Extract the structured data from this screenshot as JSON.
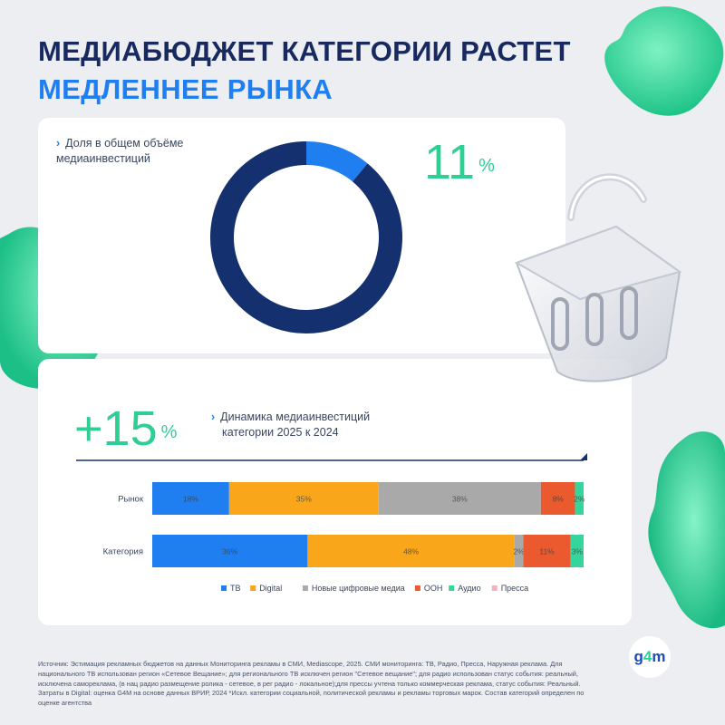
{
  "header": {
    "line1": "МЕДИАБЮДЖЕТ КАТЕГОРИИ РАСТЕТ",
    "line2": "МЕДЛЕННЕЕ РЫНКА"
  },
  "share_block": {
    "caption_line1": "Доля в общем объёме",
    "caption_line2": "медиаинвестиций",
    "value": "11",
    "unit": "%"
  },
  "growth_block": {
    "value": "+15",
    "unit": "%",
    "caption_line1": "Динамика медиаинвестиций",
    "caption_line2": "категории 2025 к 2024"
  },
  "colors": {
    "tv": "#1f7ff0",
    "digital": "#f9a61b",
    "new_digital": "#a9a9a9",
    "ooh": "#eb5a2e",
    "audio": "#34d69c",
    "press": "#f3b2c4",
    "donut_main": "#15306e",
    "donut_share": "#1f7ff0",
    "accent_green": "#2fcf94"
  },
  "chart_data": [
    {
      "type": "pie",
      "values": [
        11,
        89
      ]
    },
    {
      "type": "bar",
      "orientation": "horizontal-stacked",
      "categories": [
        "Рынок",
        "Категория"
      ],
      "series": [
        {
          "name": "ТВ",
          "values": [
            18,
            36
          ]
        },
        {
          "name": "Digital",
          "values": [
            35,
            48
          ]
        },
        {
          "name": "Новые цифровые медиа",
          "values": [
            38,
            2
          ]
        },
        {
          "name": "ООН",
          "values": [
            8,
            11
          ]
        },
        {
          "name": "Аудио",
          "values": [
            2,
            3
          ]
        },
        {
          "name": "Пресса",
          "values": [
            0,
            0
          ]
        }
      ],
      "labels": [
        [
          "18%",
          "35%",
          "38%",
          "8%",
          "2%",
          ""
        ],
        [
          "36%",
          "48%",
          "2%",
          "11%",
          "3%",
          ""
        ]
      ],
      "legend_position": "bottom"
    }
  ],
  "footnote": "Источник: Эстимация рекламных бюджетов на данных Мониторинга рекламы в СМИ, Mediascope, 2025. СМИ мониторинга: ТВ, Радио, Пресса, Наружная реклама. Для национального ТВ использован регион «Сетевое Вещание»; для регионального ТВ исключен регион \"Сетевое вещание\"; для радио использован статус события: реальный, исключена самореклама, (в нац радио размещение ролика - сетевое, в рег радио - локальное);для прессы учтена только коммерческая реклама, статус события: Реальный. Затраты в Digital: оценка G4M на основе данных ВРИР, 2024 *Искл. категории социальной, политической рекламы и рекламы торговых марок. Состав категорий определен по оценке агентства",
  "logo": {
    "part1": "g",
    "part2": "4",
    "part3": "m"
  }
}
